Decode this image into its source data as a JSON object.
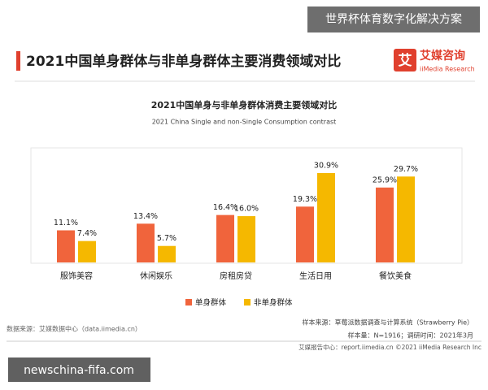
{
  "watermark_top": "世界杯体育数字化解决方案",
  "header": {
    "title": "2021中国单身群体与非单身群体主要消费领域对比",
    "logo_mark": "艾",
    "logo_name": "艾媒咨询",
    "logo_sub": "iiMedia Research"
  },
  "chart_data": {
    "type": "bar",
    "title": "2021中国单身与非单身群体消费主要领域对比",
    "subtitle": "2021 China Single and non-Single Consumption contrast",
    "categories": [
      "服饰美容",
      "休闲娱乐",
      "房租房贷",
      "生活日用",
      "餐饮美食"
    ],
    "series": [
      {
        "name": "单身群体",
        "color": "#f0643c",
        "values": [
          11.1,
          13.4,
          16.4,
          19.3,
          25.9
        ],
        "value_labels": [
          "11.1%",
          "13.4%",
          "16.4%",
          "19.3%",
          "25.9%"
        ]
      },
      {
        "name": "非单身群体",
        "color": "#f5b800",
        "values": [
          7.4,
          5.7,
          16.0,
          30.9,
          29.7
        ],
        "value_labels": [
          "7.4%",
          "5.7%",
          "16.0%",
          "30.9%",
          "29.7%"
        ]
      }
    ],
    "legend": "bottom"
  },
  "footer": {
    "source": "数据来源：艾媒数据中心（data.iimedia.cn）",
    "sample_source": "样本来源：草莓派数据调查与计算系统（Strawberry Pie）",
    "sample_size": "样本量：N=1916；调研时间：2021年3月",
    "report_center": "艾媒报告中心：report.iimedia.cn  ©2021  iiMedia Research  Inc"
  },
  "watermark_bottom": "newschina-fifa.com"
}
